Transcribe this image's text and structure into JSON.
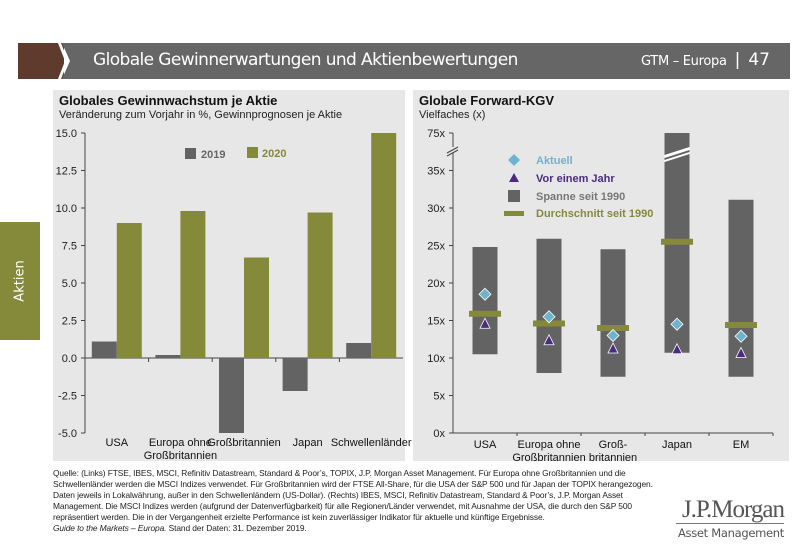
{
  "header": {
    "title": "Globale Gewinnerwartungen und Aktienbewertungen",
    "series": "GTM – Europa",
    "page": "47"
  },
  "sidebar_tab": "Aktien",
  "colors": {
    "brown": "#5e3b2c",
    "header_gray": "#666666",
    "green": "#858a3a",
    "bar_gray": "#636363",
    "diamond": "#6fb3cf",
    "triangle": "#4b2b82"
  },
  "chart_data": [
    {
      "type": "bar",
      "title": "Globales Gewinnwachstum je Aktie",
      "subtitle": "Veränderung zum Vorjahr in %, Gewinnprognosen je Aktie",
      "categories": [
        "USA",
        "Europa ohne Großbritannien",
        "Großbritannien",
        "Japan",
        "Schwellenländer"
      ],
      "category_lines": [
        [
          "USA"
        ],
        [
          "Europa ohne",
          "Großbritannien"
        ],
        [
          "Großbritannien"
        ],
        [
          "Japan"
        ],
        [
          "Schwellenländer"
        ]
      ],
      "series": [
        {
          "name": "2019",
          "color": "#636363",
          "values": [
            1.1,
            0.2,
            -5.0,
            -2.2,
            1.0
          ]
        },
        {
          "name": "2020",
          "color": "#858a3a",
          "values": [
            9.0,
            9.8,
            6.7,
            9.7,
            15.0
          ]
        }
      ],
      "ylim": [
        -5,
        15
      ],
      "yticks": [
        "15.0",
        "12.5",
        "10.0",
        "7.5",
        "5.0",
        "2.5",
        "0.0",
        "-2.5",
        "-5.0"
      ],
      "legend": "top-center",
      "grid": false
    },
    {
      "type": "range-bar",
      "title": "Globale Forward-KGV",
      "subtitle": "Vielfaches (x)",
      "categories": [
        "USA",
        "Europa ohne Großbritannien",
        "Groß-britannien",
        "Japan",
        "EM"
      ],
      "category_lines": [
        [
          "USA"
        ],
        [
          "Europa ohne",
          "Großbritannien"
        ],
        [
          "Groß-",
          "britannien"
        ],
        [
          "Japan"
        ],
        [
          "EM"
        ]
      ],
      "legend_items": [
        "Aktuell",
        "Vor einem Jahr",
        "Spanne seit 1990",
        "Durchschnitt seit 1990"
      ],
      "range_min": [
        10.5,
        8.0,
        7.5,
        10.7,
        7.5
      ],
      "range_max": [
        24.8,
        25.9,
        24.5,
        75,
        31.1
      ],
      "average": [
        15.9,
        14.6,
        14.0,
        25.5,
        14.4
      ],
      "current": [
        18.5,
        15.5,
        13.0,
        14.5,
        12.9
      ],
      "year_ago": [
        14.5,
        12.3,
        11.2,
        11.1,
        10.6
      ],
      "ylim": [
        0,
        75
      ],
      "axis_break": [
        37.5,
        75
      ],
      "yticks": [
        "0x",
        "5x",
        "10x",
        "15x",
        "20x",
        "25x",
        "30x",
        "35x",
        "75x"
      ],
      "legend": "top-left",
      "grid": false
    }
  ],
  "footer": {
    "source": "Quelle: (Links) FTSE, IBES, MSCI, Refinitiv Datastream, Standard & Poor’s, TOPIX, J.P. Morgan Asset Management. Für Europa ohne Großbritannien und die Schwellenländer werden die MSCI Indizes verwendet. Für Großbritannien wird der FTSE All-Share, für die USA der S&P 500 und für Japan der TOPIX herangezogen. Daten jeweils in Lokalwährung, außer in den Schwellenländern (US-Dollar). (Rechts) IBES, MSCI, Refinitiv Datastream, Standard & Poor’s, J.P. Morgan Asset Management. Die MSCI Indizes werden (aufgrund der Datenverfügbarkeit) für alle Regionen/Länder verwendet, mit Ausnahme der USA, die durch den S&P 500 repräsentiert werden. Die in der Vergangenheit erzielte Performance ist kein zuverlässiger Indikator für aktuelle und künftige Ergebnisse.",
    "guide": "Guide to the Markets – Europa.",
    "date": "Stand der Daten: 31. Dezember 2019."
  },
  "logo": {
    "name": "J.P.Morgan",
    "sub": "Asset Management"
  }
}
